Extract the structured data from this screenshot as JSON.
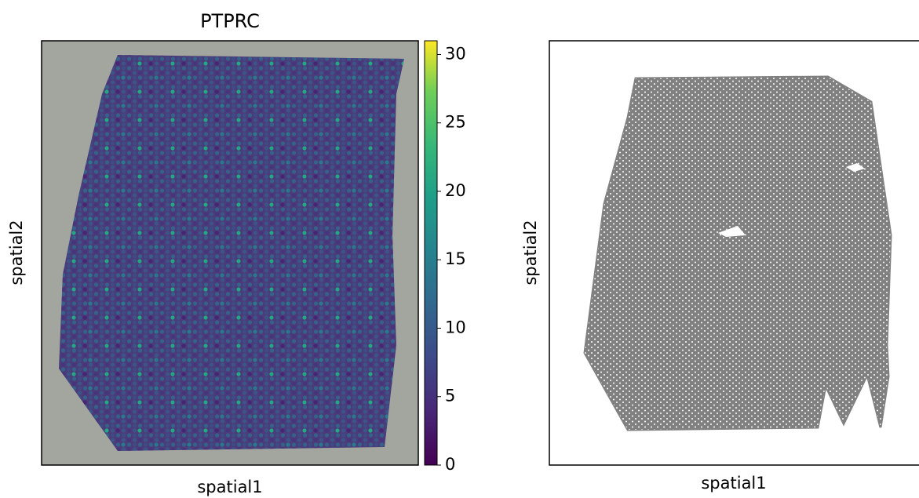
{
  "chart_data": [
    {
      "type": "spatial",
      "title": "PTPRC",
      "xlabel": "spatial1",
      "ylabel": "spatial2",
      "colorbar": {
        "lim": [
          0,
          31
        ],
        "ticks": [
          0,
          5,
          10,
          15,
          20,
          25,
          30
        ],
        "colormap": "viridis"
      }
    },
    {
      "type": "graph",
      "xlabel": "spatial1",
      "ylabel": "spatial2"
    }
  ]
}
